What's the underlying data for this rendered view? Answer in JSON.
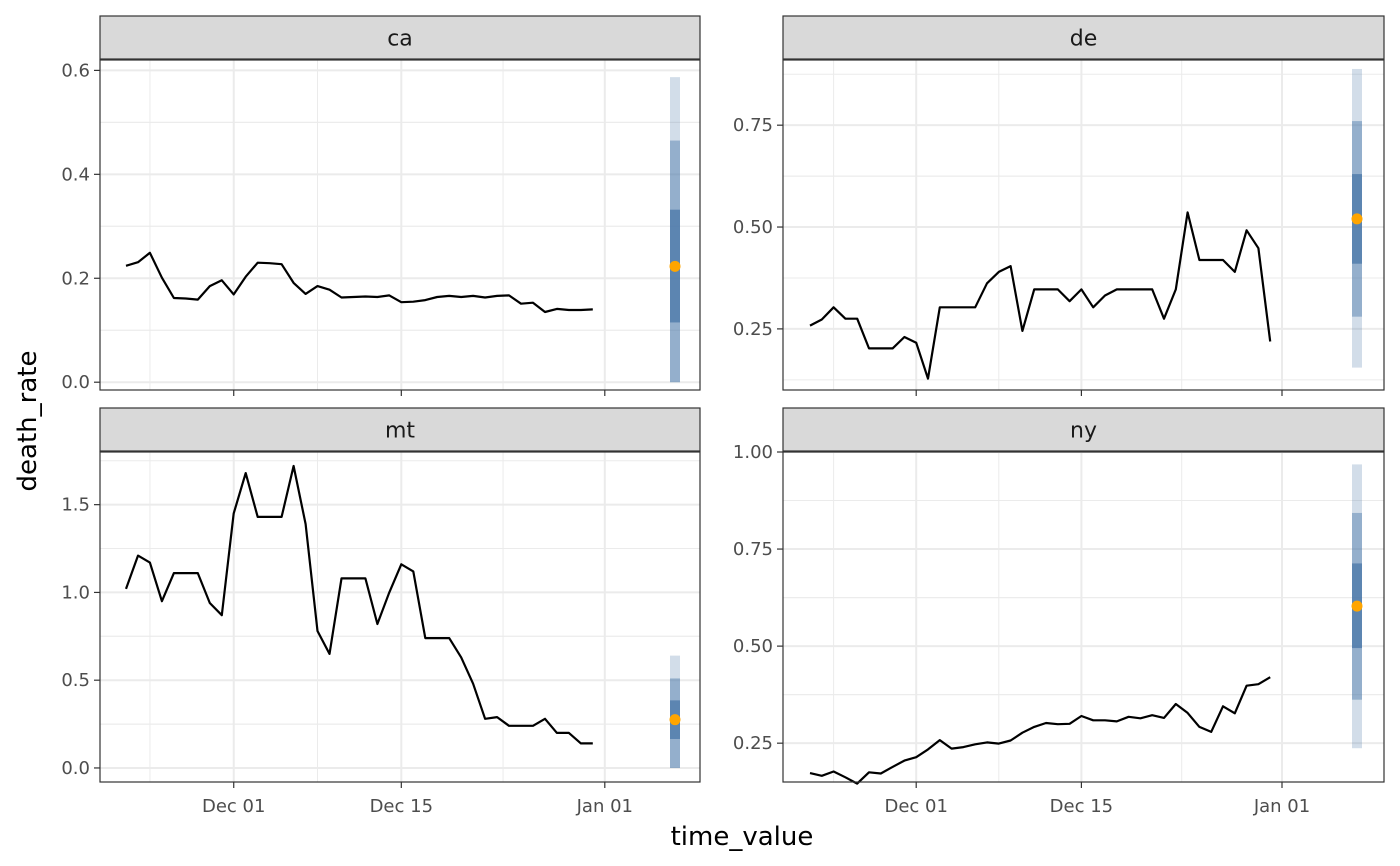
{
  "chart_data": {
    "type": "line",
    "xlabel": "time_value",
    "ylabel": "death_rate",
    "x_tick_labels": [
      "Dec 01",
      "Dec 15",
      "Jan 01"
    ],
    "colors": {
      "line": "#000000",
      "point": "#FFA500",
      "band": "#4A77A8",
      "strip": "#D9D9D9",
      "panel_border": "#333333",
      "grid": "#EBEBEB"
    },
    "panels": [
      {
        "title": "ca",
        "ylim": [
          -0.015,
          0.62
        ],
        "y_ticks": [
          0.0,
          0.2,
          0.4,
          0.6
        ],
        "y_tick_labels": [
          "0.0",
          "0.2",
          "0.4",
          "0.6"
        ],
        "series": [
          0.224,
          0.231,
          0.249,
          0.201,
          0.162,
          0.161,
          0.159,
          0.185,
          0.196,
          0.169,
          0.203,
          0.23,
          0.229,
          0.227,
          0.191,
          0.17,
          0.185,
          0.178,
          0.163,
          0.164,
          0.165,
          0.164,
          0.167,
          0.154,
          0.155,
          0.158,
          0.164,
          0.166,
          0.164,
          0.166,
          0.163,
          0.166,
          0.167,
          0.151,
          0.153,
          0.135,
          0.141,
          0.139,
          0.139,
          0.14
        ],
        "forecast": {
          "point": 0.223,
          "bands": [
            [
              0.0,
              0.587
            ],
            [
              0.0,
              0.465
            ],
            [
              0.115,
              0.332
            ]
          ]
        }
      },
      {
        "title": "de",
        "ylim": [
          0.1,
          0.91
        ],
        "y_ticks": [
          0.25,
          0.5,
          0.75
        ],
        "y_tick_labels": [
          "0.25",
          "0.50",
          "0.75"
        ],
        "series": [
          0.258,
          0.273,
          0.303,
          0.275,
          0.275,
          0.202,
          0.202,
          0.202,
          0.23,
          0.216,
          0.128,
          0.303,
          0.303,
          0.303,
          0.303,
          0.362,
          0.39,
          0.404,
          0.245,
          0.347,
          0.347,
          0.347,
          0.318,
          0.347,
          0.303,
          0.332,
          0.347,
          0.347,
          0.347,
          0.347,
          0.275,
          0.347,
          0.536,
          0.419,
          0.419,
          0.419,
          0.39,
          0.492,
          0.448,
          0.219
        ],
        "forecast": {
          "point": 0.52,
          "bands": [
            [
              0.155,
              0.888
            ],
            [
              0.28,
              0.76
            ],
            [
              0.41,
              0.63
            ]
          ]
        }
      },
      {
        "title": "mt",
        "ylim": [
          -0.08,
          1.8
        ],
        "y_ticks": [
          0.0,
          0.5,
          1.0,
          1.5
        ],
        "y_tick_labels": [
          "0.0",
          "0.5",
          "1.0",
          "1.5"
        ],
        "series": [
          1.02,
          1.21,
          1.17,
          0.95,
          1.11,
          1.11,
          1.11,
          0.94,
          0.87,
          1.45,
          1.68,
          1.43,
          1.43,
          1.43,
          1.72,
          1.39,
          0.78,
          0.65,
          1.08,
          1.08,
          1.08,
          0.82,
          1.0,
          1.16,
          1.12,
          0.74,
          0.74,
          0.74,
          0.63,
          0.48,
          0.28,
          0.29,
          0.24,
          0.24,
          0.24,
          0.28,
          0.2,
          0.2,
          0.14,
          0.14
        ],
        "forecast": {
          "point": 0.275,
          "bands": [
            [
              0.0,
              0.64
            ],
            [
              0.0,
              0.51
            ],
            [
              0.165,
              0.385
            ]
          ]
        }
      },
      {
        "title": "ny",
        "ylim": [
          0.15,
          1.0
        ],
        "y_ticks": [
          0.25,
          0.5,
          0.75,
          1.0
        ],
        "y_tick_labels": [
          "0.25",
          "0.50",
          "0.75",
          "1.00"
        ],
        "series": [
          0.173,
          0.166,
          0.177,
          0.162,
          0.146,
          0.175,
          0.172,
          0.189,
          0.205,
          0.214,
          0.234,
          0.258,
          0.236,
          0.24,
          0.247,
          0.252,
          0.249,
          0.257,
          0.277,
          0.292,
          0.302,
          0.299,
          0.3,
          0.32,
          0.309,
          0.309,
          0.306,
          0.318,
          0.314,
          0.322,
          0.315,
          0.351,
          0.328,
          0.292,
          0.279,
          0.345,
          0.327,
          0.398,
          0.402,
          0.42
        ],
        "forecast": {
          "point": 0.603,
          "bands": [
            [
              0.237,
              0.968
            ],
            [
              0.362,
              0.843
            ],
            [
              0.495,
              0.713
            ]
          ]
        }
      }
    ]
  }
}
